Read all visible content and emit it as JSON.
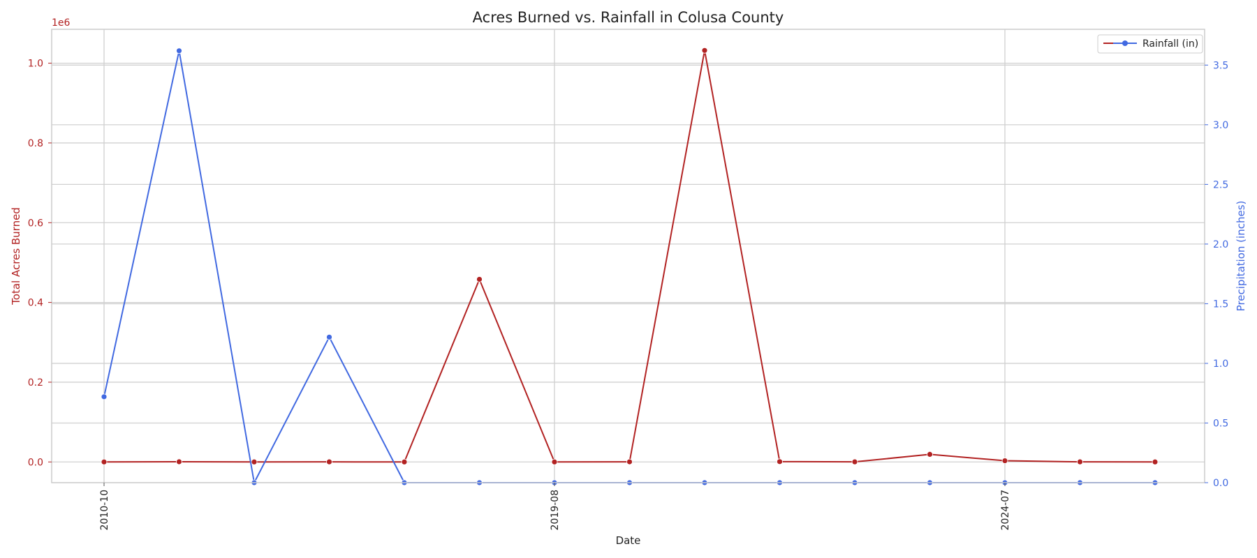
{
  "chart_data": {
    "type": "line",
    "title": "Acres Burned vs. Rainfall in Colusa County",
    "xlabel": "Date",
    "x_tick_labels": [
      "2010-10",
      "2019-08",
      "2024-07"
    ],
    "x_tick_index": [
      0,
      6,
      12
    ],
    "points": 15,
    "left_axis": {
      "label": "Total Acres Burned",
      "offset_label": "1e6",
      "color": "#b22222",
      "ylim": [
        -0.052,
        1.085
      ],
      "ticks": [
        0.0,
        0.2,
        0.4,
        0.6,
        0.8,
        1.0
      ],
      "tick_labels": [
        "0.0",
        "0.2",
        "0.4",
        "0.6",
        "0.8",
        "1.0"
      ]
    },
    "right_axis": {
      "label": "Precipitation (inches)",
      "color": "#4169e1",
      "ylim": [
        0.0,
        3.8
      ],
      "ticks": [
        0.0,
        0.5,
        1.0,
        1.5,
        2.0,
        2.5,
        3.0,
        3.5
      ],
      "tick_labels": [
        "0.0",
        "0.5",
        "1.0",
        "1.5",
        "2.0",
        "2.5",
        "3.0",
        "3.5"
      ]
    },
    "series": [
      {
        "axis": "left",
        "color": "#b22222",
        "values": [
          0.0,
          0.0005,
          0.0,
          0.0002,
          0.0,
          0.458,
          0.0,
          0.0003,
          1.032,
          0.0008,
          0.0002,
          0.019,
          0.003,
          0.0002,
          0.0
        ]
      },
      {
        "name": "Rainfall (in)",
        "axis": "right",
        "color": "#4169e1",
        "values": [
          0.72,
          3.62,
          0.0,
          1.22,
          0.0,
          0.0,
          0.0,
          0.0,
          0.0,
          0.0,
          0.0,
          0.0,
          0.0,
          0.0,
          0.0
        ]
      }
    ],
    "grid": true,
    "legend_position": "upper right"
  }
}
